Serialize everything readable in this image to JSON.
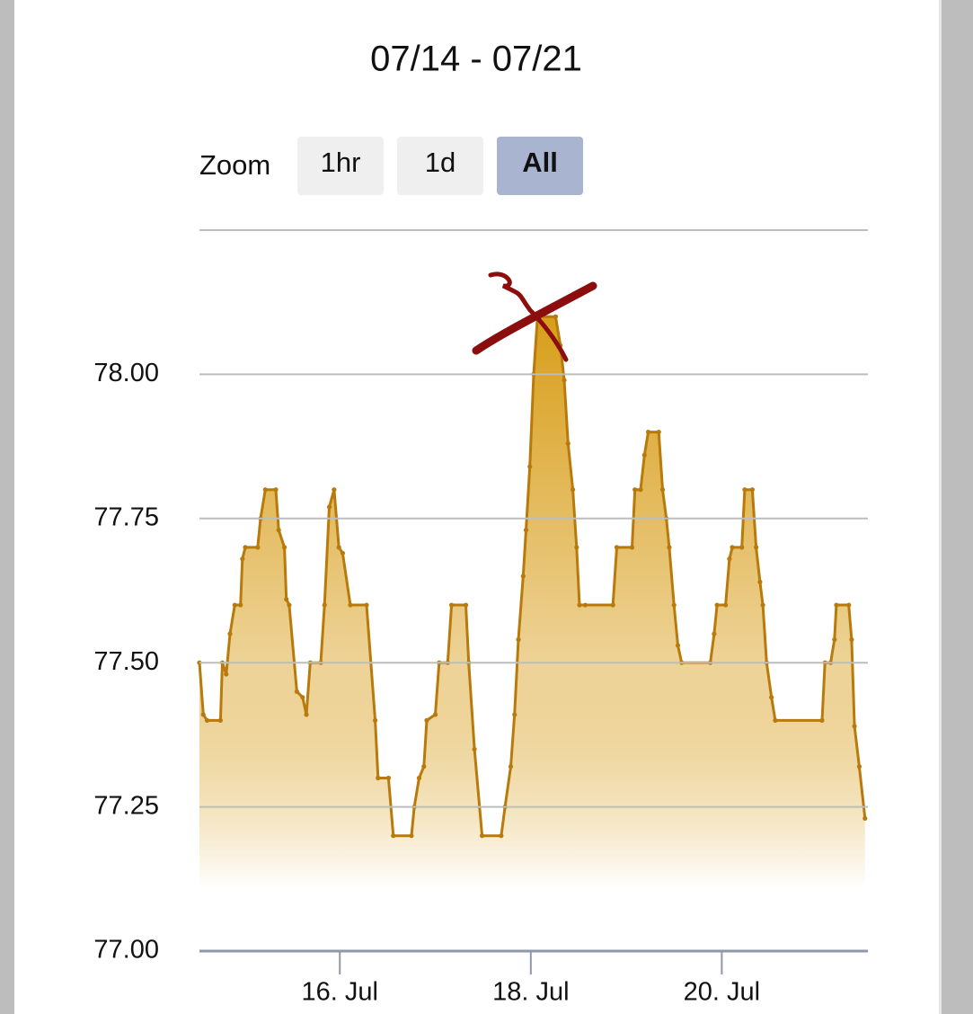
{
  "chart_data": {
    "type": "area",
    "title": "07/14 - 07/21",
    "range_selector": {
      "label": "Zoom",
      "buttons": [
        "1hr",
        "1d",
        "All"
      ],
      "selected": 2
    },
    "x": [
      14.53,
      14.57,
      14.61,
      14.75,
      14.77,
      14.81,
      14.85,
      14.9,
      14.96,
      14.98,
      15.01,
      15.14,
      15.17,
      15.22,
      15.33,
      15.36,
      15.42,
      15.44,
      15.47,
      15.55,
      15.61,
      15.65,
      15.69,
      15.8,
      15.84,
      15.89,
      15.94,
      15.99,
      16.03,
      16.11,
      16.28,
      16.37,
      16.4,
      16.51,
      16.56,
      16.75,
      16.78,
      16.83,
      16.88,
      16.91,
      17.0,
      17.04,
      17.13,
      17.17,
      17.32,
      17.35,
      17.41,
      17.49,
      17.69,
      17.73,
      17.79,
      17.83,
      17.87,
      17.92,
      17.95,
      17.99,
      18.03,
      18.07,
      18.26,
      18.31,
      18.35,
      18.39,
      18.44,
      18.48,
      18.51,
      18.57,
      18.86,
      18.9,
      19.06,
      19.09,
      19.15,
      19.19,
      19.23,
      19.34,
      19.38,
      19.42,
      19.45,
      19.5,
      19.54,
      19.58,
      19.88,
      19.92,
      19.95,
      20.04,
      20.08,
      20.11,
      20.21,
      20.24,
      20.32,
      20.36,
      20.4,
      20.43,
      20.47,
      20.52,
      20.56,
      21.05,
      21.08,
      21.14,
      21.18,
      21.2,
      21.33,
      21.36,
      21.39,
      21.44,
      21.5
    ],
    "series": [
      {
        "color": "#b97a0c",
        "values": [
          77.5,
          77.41,
          77.4,
          77.4,
          77.5,
          77.48,
          77.55,
          77.6,
          77.6,
          77.68,
          77.7,
          77.7,
          77.75,
          77.8,
          77.8,
          77.73,
          77.7,
          77.61,
          77.6,
          77.45,
          77.44,
          77.41,
          77.5,
          77.5,
          77.6,
          77.77,
          77.8,
          77.7,
          77.69,
          77.6,
          77.6,
          77.4,
          77.3,
          77.3,
          77.2,
          77.2,
          77.25,
          77.3,
          77.32,
          77.4,
          77.41,
          77.5,
          77.5,
          77.6,
          77.6,
          77.5,
          77.35,
          77.2,
          77.2,
          77.25,
          77.32,
          77.41,
          77.54,
          77.65,
          77.73,
          77.84,
          78.0,
          78.1,
          78.1,
          78.05,
          77.99,
          77.88,
          77.8,
          77.7,
          77.6,
          77.6,
          77.6,
          77.7,
          77.7,
          77.8,
          77.8,
          77.86,
          77.9,
          77.9,
          77.8,
          77.75,
          77.7,
          77.6,
          77.53,
          77.5,
          77.5,
          77.55,
          77.6,
          77.6,
          77.68,
          77.7,
          77.7,
          77.8,
          77.8,
          77.7,
          77.64,
          77.6,
          77.5,
          77.44,
          77.4,
          77.4,
          77.5,
          77.5,
          77.54,
          77.6,
          77.6,
          77.54,
          77.39,
          77.32,
          77.23
        ]
      }
    ],
    "fill_color": "#d89e1a",
    "xlim": [
      14.53,
      21.53
    ],
    "xticks": [
      {
        "value": 16,
        "label": "16. Jul"
      },
      {
        "value": 18,
        "label": "18. Jul"
      },
      {
        "value": 20,
        "label": "20. Jul"
      }
    ],
    "ylim": [
      77,
      78.25
    ],
    "yticks": [
      {
        "value": 77,
        "label": "77.00"
      },
      {
        "value": 77.25,
        "label": "77.25"
      },
      {
        "value": 77.5,
        "label": "77.50"
      },
      {
        "value": 77.75,
        "label": "77.75"
      },
      {
        "value": 78,
        "label": "78.00"
      }
    ],
    "grid": true
  }
}
